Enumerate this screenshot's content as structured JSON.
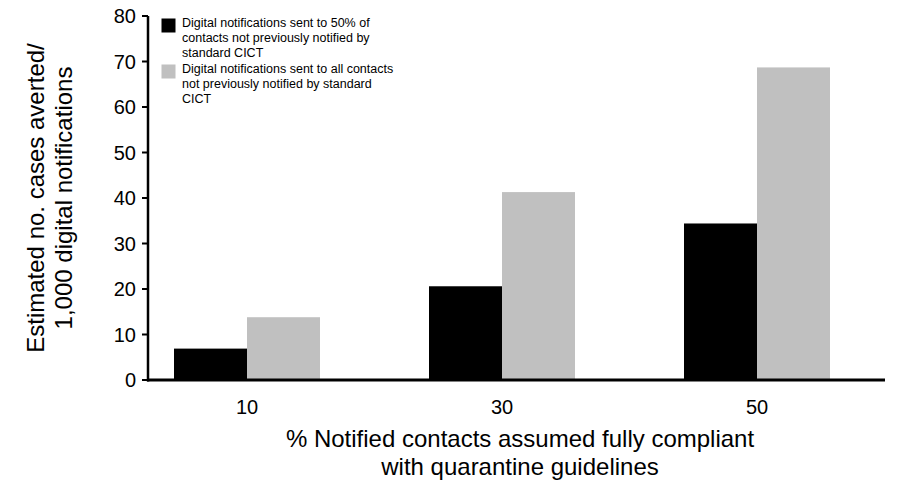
{
  "chart_data": {
    "type": "bar",
    "x_label": "% Notified contacts assumed fully compliant with quarantine guidelines",
    "y_label": "Estimated no. cases averted/ 1,000 digital notifications",
    "categories": [
      "10",
      "30",
      "50"
    ],
    "series": [
      {
        "name": "Digital notifications sent to 50% of contacts not previously notified by standard CICT",
        "color": "#000000",
        "values": [
          6.9,
          20.6,
          34.4
        ]
      },
      {
        "name": "Digital notifications sent to all contacts not previously notified by standard CICT",
        "color": "#c0c0c0",
        "values": [
          13.8,
          41.3,
          68.7
        ]
      }
    ],
    "ylim": [
      0,
      80
    ],
    "yticks": [
      0,
      10,
      20,
      30,
      40,
      50,
      60,
      70,
      80
    ],
    "grid": false,
    "legend": "upper left"
  }
}
